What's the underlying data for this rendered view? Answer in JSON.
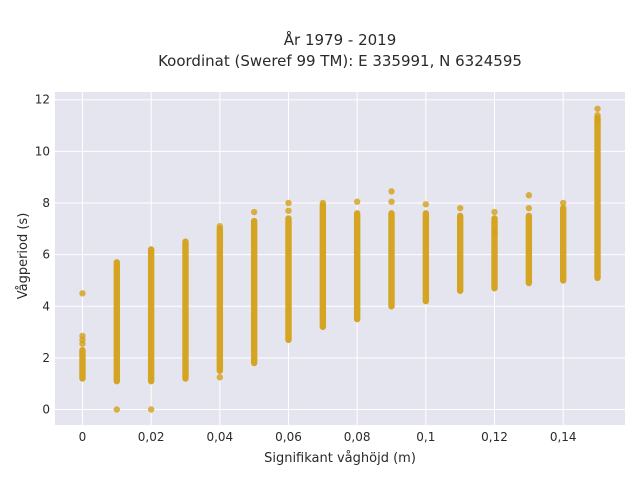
{
  "chart_data": {
    "type": "scatter",
    "title_line1": "År 1979 - 2019",
    "title_line2": "Koordinat (Sweref 99 TM): E 335991, N 6324595",
    "xlabel": "Signifikant våghöjd (m)",
    "ylabel": "Vågperiod (s)",
    "xlim": [
      -0.008,
      0.158
    ],
    "ylim": [
      -0.6,
      12.3
    ],
    "x_ticks": [
      0,
      0.02,
      0.04,
      0.06,
      0.08,
      0.1,
      0.12,
      0.14
    ],
    "x_tick_labels": [
      "0",
      "0,02",
      "0,04",
      "0,06",
      "0,08",
      "0,1",
      "0,12",
      "0,14"
    ],
    "y_ticks": [
      0,
      2,
      4,
      6,
      8,
      10,
      12
    ],
    "y_tick_labels": [
      "0",
      "2",
      "4",
      "6",
      "8",
      "10",
      "12"
    ],
    "grid": true,
    "marker_color": "#d4a017",
    "plot_background": "#e5e5ef",
    "grid_color": "#ffffff",
    "bands": [
      {
        "x": 0,
        "y_min": 1.2,
        "y_max": 2.3
      },
      {
        "x": 0.01,
        "y_min": 1.1,
        "y_max": 5.7
      },
      {
        "x": 0.02,
        "y_min": 1.1,
        "y_max": 6.2
      },
      {
        "x": 0.03,
        "y_min": 1.2,
        "y_max": 6.5
      },
      {
        "x": 0.04,
        "y_min": 1.5,
        "y_max": 7.0
      },
      {
        "x": 0.05,
        "y_min": 1.8,
        "y_max": 7.3
      },
      {
        "x": 0.06,
        "y_min": 2.7,
        "y_max": 7.4
      },
      {
        "x": 0.07,
        "y_min": 3.2,
        "y_max": 7.9
      },
      {
        "x": 0.08,
        "y_min": 3.5,
        "y_max": 7.6
      },
      {
        "x": 0.09,
        "y_min": 4.0,
        "y_max": 7.6
      },
      {
        "x": 0.1,
        "y_min": 4.2,
        "y_max": 7.6
      },
      {
        "x": 0.11,
        "y_min": 4.6,
        "y_max": 7.5
      },
      {
        "x": 0.12,
        "y_min": 4.7,
        "y_max": 7.4
      },
      {
        "x": 0.13,
        "y_min": 4.9,
        "y_max": 7.5
      },
      {
        "x": 0.14,
        "y_min": 5.0,
        "y_max": 7.8
      },
      {
        "x": 0.15,
        "y_min": 5.1,
        "y_max": 11.3
      }
    ],
    "points": [
      {
        "x": 0,
        "y": 4.5
      },
      {
        "x": 0,
        "y": 2.85
      },
      {
        "x": 0,
        "y": 2.7
      },
      {
        "x": 0,
        "y": 2.55
      },
      {
        "x": 0.01,
        "y": 0
      },
      {
        "x": 0.02,
        "y": 0
      },
      {
        "x": 0.04,
        "y": 1.25
      },
      {
        "x": 0.04,
        "y": 7.1
      },
      {
        "x": 0.05,
        "y": 7.65
      },
      {
        "x": 0.06,
        "y": 8.0
      },
      {
        "x": 0.06,
        "y": 7.7
      },
      {
        "x": 0.07,
        "y": 8.0
      },
      {
        "x": 0.08,
        "y": 8.05
      },
      {
        "x": 0.09,
        "y": 8.45
      },
      {
        "x": 0.09,
        "y": 8.05
      },
      {
        "x": 0.1,
        "y": 7.95
      },
      {
        "x": 0.11,
        "y": 7.8
      },
      {
        "x": 0.12,
        "y": 7.65
      },
      {
        "x": 0.12,
        "y": 6.85
      },
      {
        "x": 0.13,
        "y": 8.3
      },
      {
        "x": 0.13,
        "y": 7.8
      },
      {
        "x": 0.14,
        "y": 8.0
      },
      {
        "x": 0.15,
        "y": 11.65
      },
      {
        "x": 0.15,
        "y": 11.4
      },
      {
        "x": 0.15,
        "y": 11.2
      }
    ]
  }
}
